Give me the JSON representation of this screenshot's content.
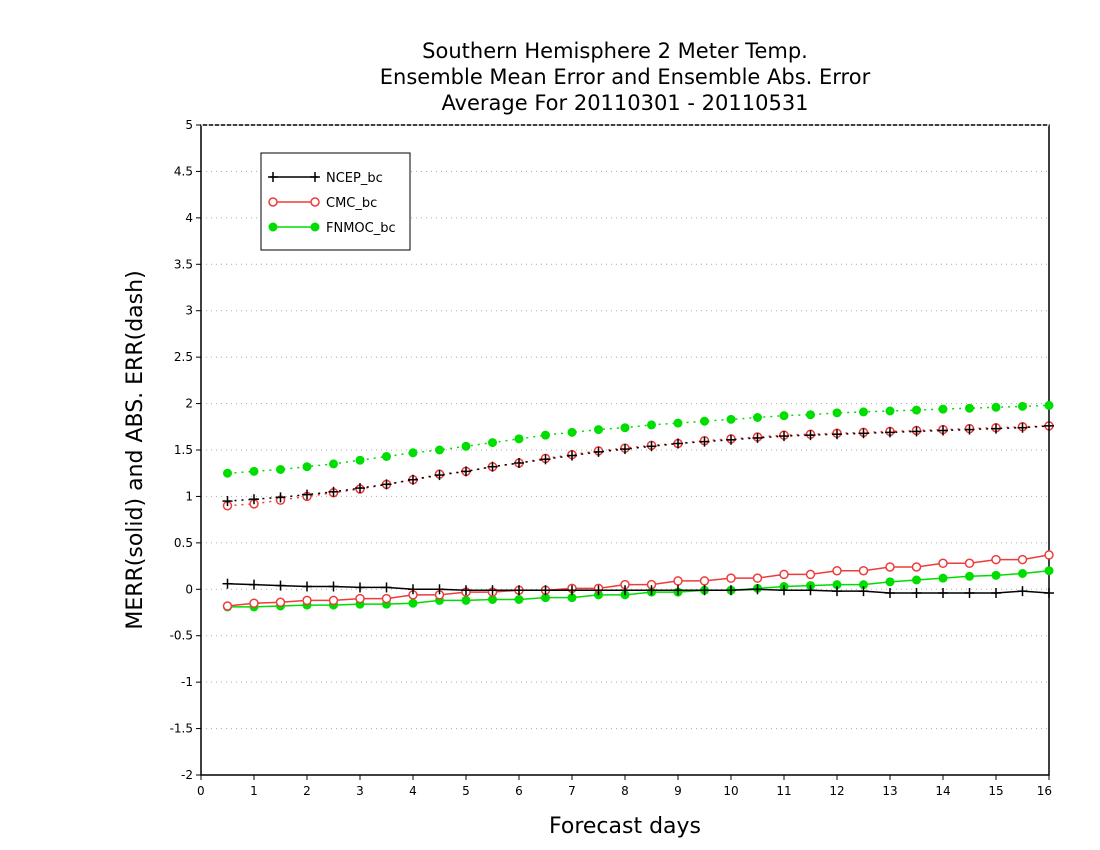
{
  "chart_data": {
    "type": "line",
    "title_lines": [
      "Southern Hemisphere 2 Meter Temp.",
      "Ensemble Mean Error and Ensemble Abs. Error",
      "Average For 20110301 - 20110531"
    ],
    "xlabel": "Forecast days",
    "ylabel": "MERR(solid) and ABS. ERR(dash)",
    "xlim": [
      0,
      16
    ],
    "ylim": [
      -2,
      5
    ],
    "xticks": [
      "0",
      "1",
      "2",
      "3",
      "4",
      "5",
      "6",
      "7",
      "8",
      "9",
      "10",
      "11",
      "12",
      "13",
      "14",
      "15",
      "16"
    ],
    "yticks": [
      "5",
      "4.5",
      "4",
      "3.5",
      "3",
      "2.5",
      "2",
      "1.5",
      "1",
      "0.5",
      "0",
      "-0.5",
      "-1",
      "-1.5",
      "-2"
    ],
    "ytick_values": [
      5,
      4.5,
      4,
      3.5,
      3,
      2.5,
      2,
      1.5,
      1,
      0.5,
      0,
      -0.5,
      -1,
      -1.5,
      -2
    ],
    "grid": "horizontal dotted",
    "legend_position": "top-left",
    "x": [
      0.5,
      1,
      1.5,
      2,
      2.5,
      3,
      3.5,
      4,
      4.5,
      5,
      5.5,
      6,
      6.5,
      7,
      7.5,
      8,
      8.5,
      9,
      9.5,
      10,
      10.5,
      11,
      11.5,
      12,
      12.5,
      13,
      13.5,
      14,
      14.5,
      15,
      15.5,
      16
    ],
    "series": [
      {
        "name": "NCEP_bc",
        "color": "#000000",
        "marker": "plus",
        "merr": [
          0.06,
          0.05,
          0.04,
          0.03,
          0.03,
          0.02,
          0.02,
          0.0,
          0.0,
          -0.01,
          -0.01,
          -0.01,
          -0.01,
          -0.01,
          -0.01,
          -0.01,
          -0.01,
          -0.01,
          -0.01,
          -0.01,
          0.0,
          -0.01,
          -0.01,
          -0.02,
          -0.02,
          -0.04,
          -0.04,
          -0.04,
          -0.04,
          -0.04,
          -0.02,
          -0.04
        ],
        "abs_err": [
          0.95,
          0.97,
          0.99,
          1.02,
          1.05,
          1.09,
          1.13,
          1.18,
          1.23,
          1.27,
          1.32,
          1.36,
          1.4,
          1.44,
          1.48,
          1.51,
          1.54,
          1.57,
          1.59,
          1.61,
          1.63,
          1.65,
          1.66,
          1.67,
          1.68,
          1.69,
          1.7,
          1.71,
          1.72,
          1.73,
          1.74,
          1.76
        ]
      },
      {
        "name": "CMC_bc",
        "color": "#ee3b3b",
        "marker": "open-circle",
        "merr": [
          -0.18,
          -0.15,
          -0.14,
          -0.12,
          -0.12,
          -0.1,
          -0.1,
          -0.06,
          -0.06,
          -0.03,
          -0.03,
          -0.01,
          -0.01,
          0.01,
          0.01,
          0.05,
          0.05,
          0.09,
          0.09,
          0.12,
          0.12,
          0.16,
          0.16,
          0.2,
          0.2,
          0.24,
          0.24,
          0.28,
          0.28,
          0.32,
          0.32,
          0.37
        ],
        "abs_err": [
          0.9,
          0.92,
          0.96,
          1.0,
          1.04,
          1.08,
          1.13,
          1.18,
          1.24,
          1.27,
          1.32,
          1.36,
          1.41,
          1.45,
          1.49,
          1.52,
          1.55,
          1.57,
          1.6,
          1.62,
          1.64,
          1.66,
          1.67,
          1.68,
          1.69,
          1.7,
          1.71,
          1.72,
          1.73,
          1.74,
          1.75,
          1.76
        ]
      },
      {
        "name": "FNMOC_bc",
        "color": "#00dd00",
        "marker": "filled-circle",
        "merr": [
          -0.19,
          -0.19,
          -0.18,
          -0.17,
          -0.17,
          -0.16,
          -0.16,
          -0.15,
          -0.12,
          -0.12,
          -0.11,
          -0.11,
          -0.09,
          -0.09,
          -0.06,
          -0.06,
          -0.03,
          -0.03,
          -0.01,
          -0.01,
          0.01,
          0.03,
          0.04,
          0.05,
          0.05,
          0.08,
          0.1,
          0.12,
          0.14,
          0.15,
          0.17,
          0.2
        ],
        "abs_err": [
          1.25,
          1.27,
          1.29,
          1.32,
          1.35,
          1.39,
          1.43,
          1.47,
          1.5,
          1.54,
          1.58,
          1.62,
          1.66,
          1.69,
          1.72,
          1.74,
          1.77,
          1.79,
          1.81,
          1.83,
          1.85,
          1.87,
          1.88,
          1.9,
          1.91,
          1.92,
          1.93,
          1.94,
          1.95,
          1.96,
          1.97,
          1.98
        ]
      }
    ]
  }
}
